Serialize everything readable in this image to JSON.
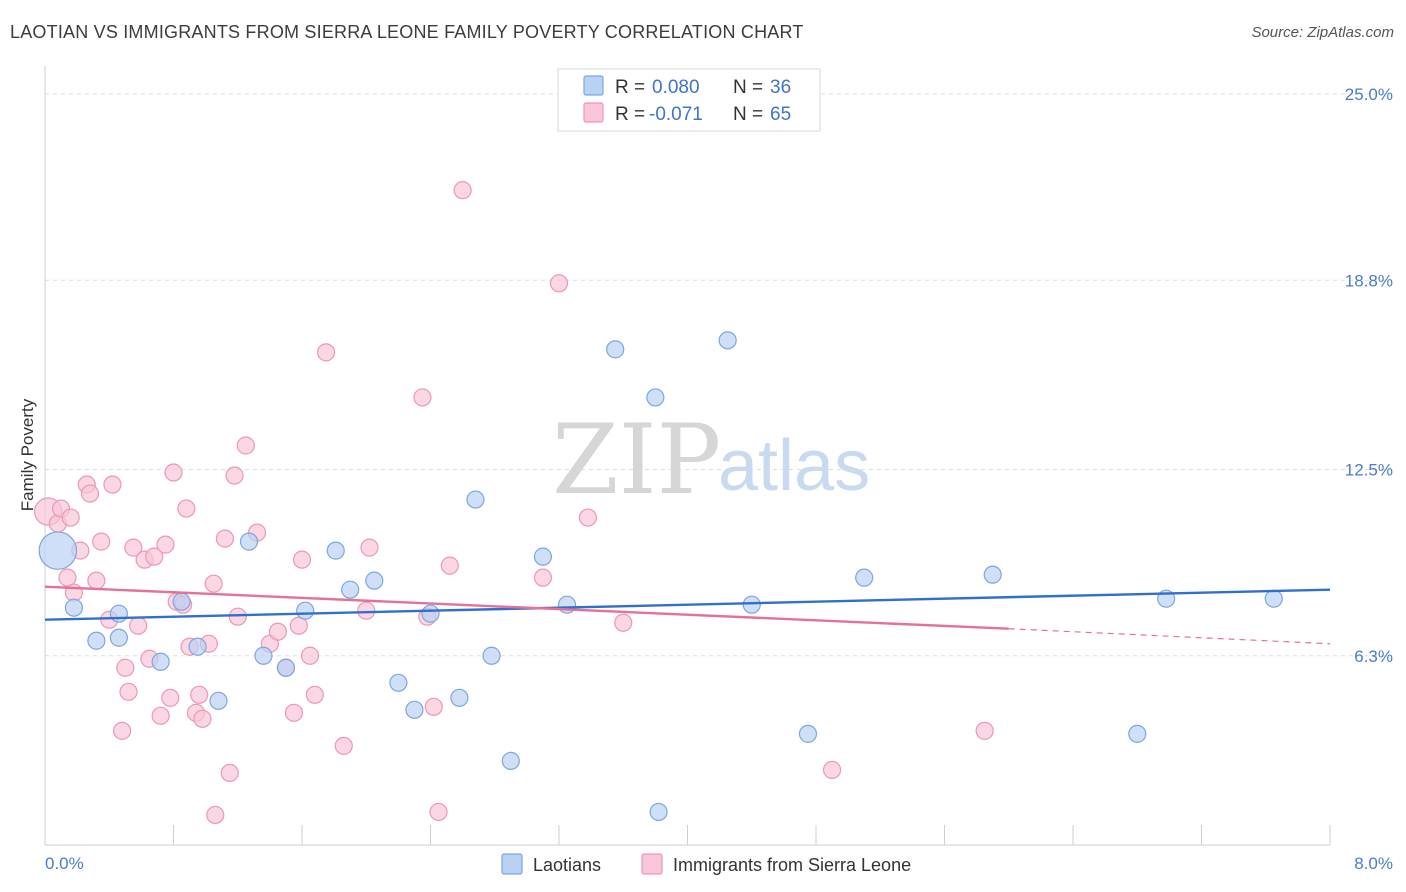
{
  "header": {
    "title": "LAOTIAN VS IMMIGRANTS FROM SIERRA LEONE FAMILY POVERTY CORRELATION CHART",
    "source": "Source: ZipAtlas.com"
  },
  "watermark": {
    "zip": "ZIP",
    "atlas": "atlas"
  },
  "colors": {
    "laotian_fill": "#b9d2f3",
    "laotian_stroke": "#7ea6dd",
    "laotian_line": "#2f6fd0",
    "sierra_fill": "#f8c6d6",
    "sierra_stroke": "#eb98b4",
    "sierra_line": "#e4719a",
    "tick_text": "#4a7cc9",
    "grid": "#dedede"
  },
  "legend_top": {
    "rows": [
      {
        "r_label": "R =",
        "r_value": "0.080",
        "n_label": "N =",
        "n_value": "36"
      },
      {
        "r_label": "R =",
        "r_value": "-0.071",
        "n_label": "N =",
        "n_value": "65"
      }
    ]
  },
  "chart_data": {
    "type": "scatter",
    "title": "LAOTIAN VS IMMIGRANTS FROM SIERRA LEONE FAMILY POVERTY CORRELATION CHART",
    "xlabel": "",
    "ylabel": "Family Poverty",
    "xlim": [
      0,
      8
    ],
    "ylim": [
      0,
      25.8
    ],
    "x_tick_labels": [
      "0.0%",
      "8.0%"
    ],
    "y_ticks": [
      6.3,
      12.5,
      18.8,
      25.0
    ],
    "y_tick_labels": [
      "6.3%",
      "12.5%",
      "18.8%",
      "25.0%"
    ],
    "grid": true,
    "legend_position": "top-center",
    "series": [
      {
        "name": "Laotians",
        "r": 0.08,
        "n": 36,
        "trend": {
          "x": [
            0,
            8
          ],
          "y": [
            7.5,
            8.5
          ]
        },
        "points": [
          [
            0.08,
            9.8,
            2.2
          ],
          [
            0.18,
            7.9,
            1
          ],
          [
            0.32,
            6.8,
            1
          ],
          [
            0.46,
            7.7,
            1
          ],
          [
            0.46,
            6.9,
            1
          ],
          [
            0.72,
            6.1,
            1
          ],
          [
            0.85,
            8.1,
            1
          ],
          [
            0.95,
            6.6,
            1
          ],
          [
            1.08,
            4.8,
            1
          ],
          [
            1.27,
            10.1,
            1
          ],
          [
            1.36,
            6.3,
            1
          ],
          [
            1.5,
            5.9,
            1
          ],
          [
            1.62,
            7.8,
            1
          ],
          [
            1.81,
            9.8,
            1
          ],
          [
            1.9,
            8.5,
            1
          ],
          [
            2.05,
            8.8,
            1
          ],
          [
            2.2,
            5.4,
            1
          ],
          [
            2.3,
            4.5,
            1
          ],
          [
            2.4,
            7.7,
            1
          ],
          [
            2.58,
            4.9,
            1
          ],
          [
            2.68,
            11.5,
            1
          ],
          [
            2.78,
            6.3,
            1
          ],
          [
            2.9,
            2.8,
            1
          ],
          [
            3.1,
            9.6,
            1
          ],
          [
            3.25,
            8.0,
            1
          ],
          [
            3.55,
            16.5,
            1
          ],
          [
            3.82,
            1.1,
            1
          ],
          [
            3.8,
            14.9,
            1
          ],
          [
            4.25,
            16.8,
            1
          ],
          [
            4.4,
            8.0,
            1
          ],
          [
            4.75,
            3.7,
            1
          ],
          [
            5.1,
            8.9,
            1
          ],
          [
            5.9,
            9.0,
            1
          ],
          [
            6.8,
            3.7,
            1
          ],
          [
            6.98,
            8.2,
            1
          ],
          [
            7.65,
            8.2,
            1
          ]
        ]
      },
      {
        "name": "Immigrants from Sierra Leone",
        "r": -0.071,
        "n": 65,
        "trend": {
          "x": [
            0,
            6.0
          ],
          "y": [
            8.6,
            7.2
          ]
        },
        "trend_dashed": {
          "x": [
            6.0,
            8.0
          ],
          "y": [
            7.2,
            6.7
          ]
        },
        "points": [
          [
            0.02,
            11.1,
            1.6
          ],
          [
            0.08,
            10.7,
            1
          ],
          [
            0.1,
            11.2,
            1
          ],
          [
            0.14,
            8.9,
            1
          ],
          [
            0.16,
            10.9,
            1
          ],
          [
            0.18,
            8.4,
            1
          ],
          [
            0.22,
            9.8,
            1
          ],
          [
            0.26,
            12.0,
            1
          ],
          [
            0.28,
            11.7,
            1
          ],
          [
            0.32,
            8.8,
            1
          ],
          [
            0.35,
            10.1,
            1
          ],
          [
            0.4,
            7.5,
            1
          ],
          [
            0.42,
            12.0,
            1
          ],
          [
            0.48,
            3.8,
            1
          ],
          [
            0.5,
            5.9,
            1
          ],
          [
            0.52,
            5.1,
            1
          ],
          [
            0.55,
            9.9,
            1
          ],
          [
            0.58,
            7.3,
            1
          ],
          [
            0.62,
            9.5,
            1
          ],
          [
            0.65,
            6.2,
            1
          ],
          [
            0.68,
            9.6,
            1
          ],
          [
            0.72,
            4.3,
            1
          ],
          [
            0.75,
            10.0,
            1
          ],
          [
            0.78,
            4.9,
            1
          ],
          [
            0.8,
            12.4,
            1
          ],
          [
            0.82,
            8.1,
            1
          ],
          [
            0.86,
            8.0,
            1
          ],
          [
            0.88,
            11.2,
            1
          ],
          [
            0.9,
            6.6,
            1
          ],
          [
            0.94,
            4.4,
            1
          ],
          [
            0.96,
            5.0,
            1
          ],
          [
            0.98,
            4.2,
            1
          ],
          [
            1.02,
            6.7,
            1
          ],
          [
            1.05,
            8.7,
            1
          ],
          [
            1.06,
            1.0,
            1
          ],
          [
            1.12,
            10.2,
            1
          ],
          [
            1.15,
            2.4,
            1
          ],
          [
            1.18,
            12.3,
            1
          ],
          [
            1.2,
            7.6,
            1
          ],
          [
            1.25,
            13.3,
            1
          ],
          [
            1.32,
            10.4,
            1
          ],
          [
            1.4,
            6.7,
            1
          ],
          [
            1.45,
            7.1,
            1
          ],
          [
            1.5,
            5.9,
            1
          ],
          [
            1.55,
            4.4,
            1
          ],
          [
            1.58,
            7.3,
            1
          ],
          [
            1.6,
            9.5,
            1
          ],
          [
            1.65,
            6.3,
            1
          ],
          [
            1.68,
            5.0,
            1
          ],
          [
            1.75,
            16.4,
            1
          ],
          [
            1.86,
            3.3,
            1
          ],
          [
            2.0,
            7.8,
            1
          ],
          [
            2.02,
            9.9,
            1
          ],
          [
            2.35,
            14.9,
            1
          ],
          [
            2.38,
            7.6,
            1
          ],
          [
            2.42,
            4.6,
            1
          ],
          [
            2.45,
            1.1,
            1
          ],
          [
            2.52,
            9.3,
            1
          ],
          [
            2.6,
            21.8,
            1
          ],
          [
            3.1,
            8.9,
            1
          ],
          [
            3.2,
            18.7,
            1
          ],
          [
            3.38,
            10.9,
            1
          ],
          [
            3.6,
            7.4,
            1
          ],
          [
            4.9,
            2.5,
            1
          ],
          [
            5.85,
            3.8,
            1
          ]
        ]
      }
    ]
  },
  "bottom_legend": {
    "items": [
      {
        "label": "Laotians"
      },
      {
        "label": "Immigrants from Sierra Leone"
      }
    ]
  }
}
